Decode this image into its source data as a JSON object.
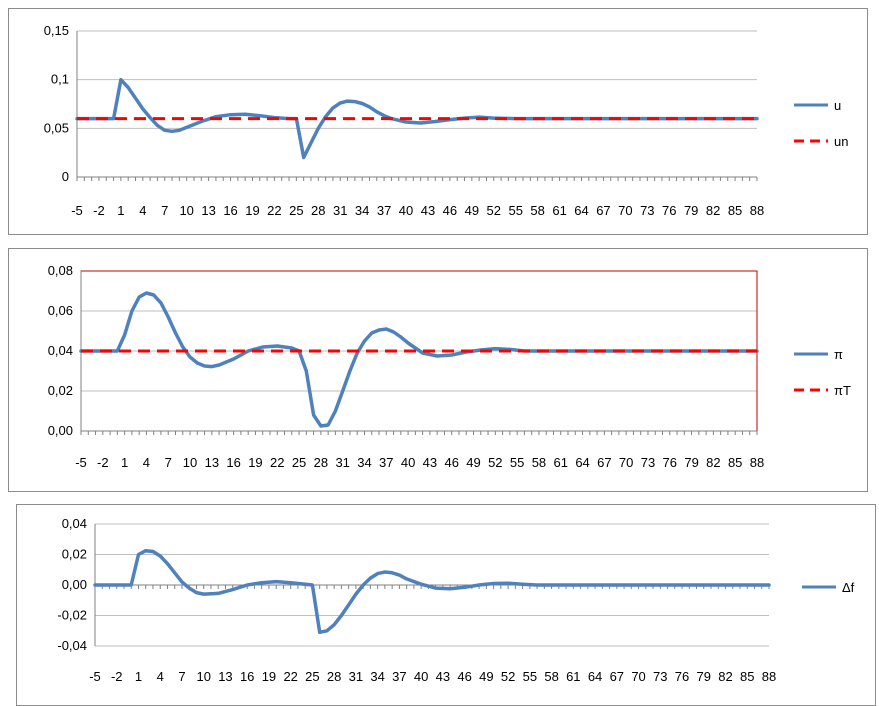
{
  "chart_data": [
    {
      "type": "line",
      "x_ticks": [
        "-5",
        "-2",
        "1",
        "4",
        "7",
        "10",
        "13",
        "16",
        "19",
        "22",
        "25",
        "28",
        "31",
        "34",
        "37",
        "40",
        "43",
        "46",
        "49",
        "52",
        "55",
        "58",
        "61",
        "64",
        "67",
        "70",
        "73",
        "76",
        "79",
        "82",
        "85",
        "88"
      ],
      "xlim": [
        -5,
        88
      ],
      "ylim": [
        0,
        0.15
      ],
      "y_ticks": [
        "0",
        "0,05",
        "0,1",
        "0,15"
      ],
      "legend_position": "right",
      "grid": true,
      "series": [
        {
          "name": "u",
          "style": "solid",
          "color": "#4f81bd",
          "points": [
            [
              -5,
              0.06
            ],
            [
              -1,
              0.06
            ],
            [
              0,
              0.06
            ],
            [
              1,
              0.1
            ],
            [
              2,
              0.092
            ],
            [
              3,
              0.081
            ],
            [
              4,
              0.07
            ],
            [
              5,
              0.061
            ],
            [
              6,
              0.053
            ],
            [
              7,
              0.048
            ],
            [
              8,
              0.047
            ],
            [
              9,
              0.048
            ],
            [
              10,
              0.051
            ],
            [
              12,
              0.057
            ],
            [
              14,
              0.062
            ],
            [
              16,
              0.064
            ],
            [
              18,
              0.0645
            ],
            [
              20,
              0.063
            ],
            [
              22,
              0.061
            ],
            [
              24,
              0.06
            ],
            [
              25,
              0.06
            ],
            [
              26,
              0.02
            ],
            [
              27,
              0.035
            ],
            [
              28,
              0.05
            ],
            [
              29,
              0.062
            ],
            [
              30,
              0.071
            ],
            [
              31,
              0.076
            ],
            [
              32,
              0.078
            ],
            [
              33,
              0.0775
            ],
            [
              34,
              0.0755
            ],
            [
              35,
              0.072
            ],
            [
              36,
              0.067
            ],
            [
              37,
              0.063
            ],
            [
              38,
              0.06
            ],
            [
              40,
              0.0565
            ],
            [
              42,
              0.0555
            ],
            [
              44,
              0.057
            ],
            [
              46,
              0.059
            ],
            [
              48,
              0.0605
            ],
            [
              50,
              0.0615
            ],
            [
              52,
              0.0605
            ],
            [
              55,
              0.06
            ],
            [
              88,
              0.06
            ]
          ]
        },
        {
          "name": "un",
          "style": "dashed",
          "color": "#ff0000",
          "points": [
            [
              -5,
              0.06
            ],
            [
              88,
              0.06
            ]
          ]
        }
      ]
    },
    {
      "type": "line",
      "x_ticks": [
        "-5",
        "-2",
        "1",
        "4",
        "7",
        "10",
        "13",
        "16",
        "19",
        "22",
        "25",
        "28",
        "31",
        "34",
        "37",
        "40",
        "43",
        "46",
        "49",
        "52",
        "55",
        "58",
        "61",
        "64",
        "67",
        "70",
        "73",
        "76",
        "79",
        "82",
        "85",
        "88"
      ],
      "xlim": [
        -5,
        88
      ],
      "ylim": [
        0,
        0.08
      ],
      "y_ticks": [
        "0,00",
        "0,02",
        "0,04",
        "0,06",
        "0,08"
      ],
      "legend_position": "right",
      "grid": true,
      "plot_border_color": "#c00000",
      "series": [
        {
          "name": "π",
          "style": "solid",
          "color": "#4f81bd",
          "points": [
            [
              -5,
              0.04
            ],
            [
              0,
              0.04
            ],
            [
              1,
              0.048
            ],
            [
              2,
              0.06
            ],
            [
              3,
              0.067
            ],
            [
              4,
              0.069
            ],
            [
              5,
              0.068
            ],
            [
              6,
              0.064
            ],
            [
              7,
              0.057
            ],
            [
              8,
              0.049
            ],
            [
              9,
              0.042
            ],
            [
              10,
              0.037
            ],
            [
              11,
              0.034
            ],
            [
              12,
              0.0325
            ],
            [
              13,
              0.0322
            ],
            [
              14,
              0.033
            ],
            [
              16,
              0.036
            ],
            [
              18,
              0.04
            ],
            [
              20,
              0.042
            ],
            [
              22,
              0.0425
            ],
            [
              24,
              0.0415
            ],
            [
              25,
              0.04
            ],
            [
              26,
              0.03
            ],
            [
              27,
              0.008
            ],
            [
              28,
              0.0025
            ],
            [
              29,
              0.003
            ],
            [
              30,
              0.01
            ],
            [
              31,
              0.02
            ],
            [
              32,
              0.03
            ],
            [
              33,
              0.039
            ],
            [
              34,
              0.045
            ],
            [
              35,
              0.049
            ],
            [
              36,
              0.0505
            ],
            [
              37,
              0.051
            ],
            [
              38,
              0.0495
            ],
            [
              39,
              0.047
            ],
            [
              40,
              0.044
            ],
            [
              42,
              0.039
            ],
            [
              44,
              0.0375
            ],
            [
              46,
              0.038
            ],
            [
              48,
              0.0395
            ],
            [
              50,
              0.0405
            ],
            [
              52,
              0.0412
            ],
            [
              54,
              0.0408
            ],
            [
              56,
              0.04
            ],
            [
              88,
              0.04
            ]
          ]
        },
        {
          "name": "πT",
          "style": "dashed",
          "color": "#ff0000",
          "points": [
            [
              -5,
              0.04
            ],
            [
              88,
              0.04
            ]
          ]
        }
      ]
    },
    {
      "type": "line",
      "x_ticks": [
        "-5",
        "-2",
        "1",
        "4",
        "7",
        "10",
        "13",
        "16",
        "19",
        "22",
        "25",
        "28",
        "31",
        "34",
        "37",
        "40",
        "43",
        "46",
        "49",
        "52",
        "55",
        "58",
        "61",
        "64",
        "67",
        "70",
        "73",
        "76",
        "79",
        "82",
        "85",
        "88"
      ],
      "xlim": [
        -5,
        88
      ],
      "ylim": [
        -0.04,
        0.04
      ],
      "y_ticks": [
        "-0,04",
        "-0,02",
        "0,00",
        "0,02",
        "0,04"
      ],
      "legend_position": "right",
      "grid": true,
      "series": [
        {
          "name": "Δf",
          "style": "solid",
          "color": "#4f81bd",
          "points": [
            [
              -5,
              0
            ],
            [
              0,
              0
            ],
            [
              1,
              0.02
            ],
            [
              2,
              0.0225
            ],
            [
              3,
              0.022
            ],
            [
              4,
              0.019
            ],
            [
              5,
              0.014
            ],
            [
              6,
              0.008
            ],
            [
              7,
              0.002
            ],
            [
              8,
              -0.002
            ],
            [
              9,
              -0.005
            ],
            [
              10,
              -0.006
            ],
            [
              12,
              -0.0055
            ],
            [
              14,
              -0.003
            ],
            [
              16,
              0
            ],
            [
              18,
              0.0015
            ],
            [
              20,
              0.0022
            ],
            [
              22,
              0.0015
            ],
            [
              24,
              0.0005
            ],
            [
              25,
              0
            ],
            [
              26,
              -0.031
            ],
            [
              27,
              -0.03
            ],
            [
              28,
              -0.026
            ],
            [
              29,
              -0.02
            ],
            [
              30,
              -0.013
            ],
            [
              31,
              -0.006
            ],
            [
              32,
              0
            ],
            [
              33,
              0.0045
            ],
            [
              34,
              0.0075
            ],
            [
              35,
              0.0085
            ],
            [
              36,
              0.008
            ],
            [
              37,
              0.0065
            ],
            [
              38,
              0.004
            ],
            [
              40,
              0.0005
            ],
            [
              42,
              -0.002
            ],
            [
              44,
              -0.0025
            ],
            [
              46,
              -0.0015
            ],
            [
              48,
              0
            ],
            [
              50,
              0.001
            ],
            [
              52,
              0.0012
            ],
            [
              54,
              0.0005
            ],
            [
              56,
              0
            ],
            [
              88,
              0
            ]
          ]
        }
      ]
    }
  ]
}
